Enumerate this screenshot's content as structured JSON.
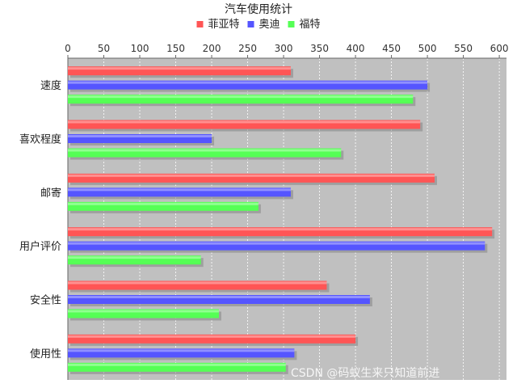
{
  "chart_data": {
    "type": "bar",
    "orientation": "horizontal",
    "title": "汽车使用统计",
    "categories": [
      "速度",
      "喜欢程度",
      "邮寄",
      "用户评价",
      "安全性",
      "使用性"
    ],
    "series": [
      {
        "name": "菲亚特",
        "color": "#ff5555",
        "values": [
          310,
          490,
          510,
          590,
          360,
          400
        ]
      },
      {
        "name": "奥迪",
        "color": "#5555ff",
        "values": [
          500,
          200,
          310,
          580,
          420,
          315
        ]
      },
      {
        "name": "福特",
        "color": "#55ff55",
        "values": [
          480,
          380,
          265,
          185,
          210,
          303
        ]
      }
    ],
    "xlim": [
      0,
      610
    ],
    "xticks": [
      0,
      50,
      100,
      150,
      200,
      250,
      300,
      350,
      400,
      450,
      500,
      550,
      600
    ],
    "xaxis_position": "top",
    "legend_position": "top",
    "grid": true,
    "plot_background": "#c0c0c0"
  },
  "watermark": "CSDN @码蚁生来只知道前进"
}
